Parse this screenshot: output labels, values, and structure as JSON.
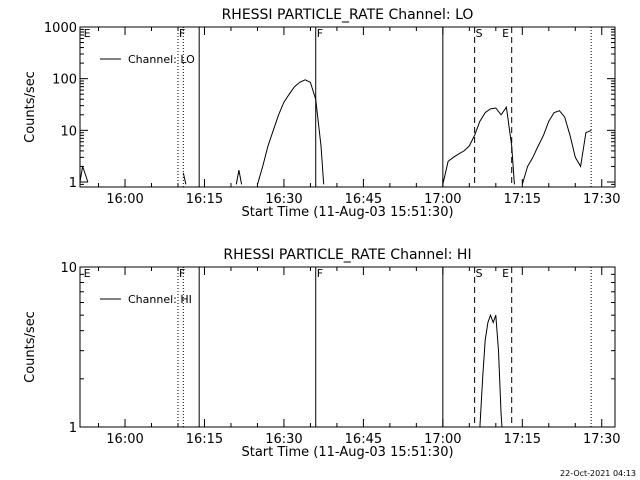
{
  "chart_data": [
    {
      "type": "line",
      "title": "RHESSI PARTICLE_RATE Channel: LO",
      "xlabel": "Start Time (11-Aug-03 15:51:30)",
      "ylabel": "Counts/sec",
      "yscale": "log",
      "xlim": [
        "15:51:30",
        "17:32:30"
      ],
      "ylim": [
        0.8,
        1000
      ],
      "x_ticks": [
        "16:00",
        "16:15",
        "16:30",
        "16:45",
        "17:00",
        "17:15",
        "17:30"
      ],
      "y_ticks": [
        "1",
        "10",
        "100",
        "1000"
      ],
      "legend": {
        "placement": "top-left",
        "entries": [
          "Channel: LO"
        ]
      },
      "markers": [
        {
          "time": "15:52",
          "label": "E"
        },
        {
          "time": "16:10",
          "label": "F"
        },
        {
          "time": "16:36",
          "label": "F"
        },
        {
          "time": "17:06",
          "label": "S"
        },
        {
          "time": "17:11",
          "label": "E"
        }
      ],
      "vertical_lines": [
        {
          "time": "16:10",
          "style": "dotted"
        },
        {
          "time": "16:11",
          "style": "dotted"
        },
        {
          "time": "16:14",
          "style": "solid"
        },
        {
          "time": "16:36",
          "style": "solid"
        },
        {
          "time": "17:00",
          "style": "solid"
        },
        {
          "time": "17:06",
          "style": "dashed"
        },
        {
          "time": "17:13",
          "style": "dashed"
        },
        {
          "time": "17:28",
          "style": "dotted"
        }
      ],
      "segments": [
        [
          [
            "15:51:30",
            1
          ],
          [
            "15:52",
            2
          ],
          [
            "15:53",
            1
          ]
        ],
        [
          [
            "16:11",
            1.5
          ],
          [
            "16:11:30",
            0.9
          ]
        ],
        [
          [
            "16:21",
            0.9
          ],
          [
            "16:21:30",
            1.7
          ],
          [
            "16:22",
            0.9
          ]
        ],
        [
          [
            "16:25",
            0.9
          ],
          [
            "16:26",
            2
          ],
          [
            "16:27",
            5
          ],
          [
            "16:28",
            10
          ],
          [
            "16:29",
            20
          ],
          [
            "16:30",
            35
          ],
          [
            "16:31",
            50
          ],
          [
            "16:32",
            70
          ],
          [
            "16:33",
            85
          ],
          [
            "16:34",
            95
          ],
          [
            "16:35",
            85
          ],
          [
            "16:36",
            40
          ],
          [
            "16:37",
            5
          ],
          [
            "16:37:30",
            0.9
          ]
        ],
        [
          [
            "17:00",
            0.9
          ],
          [
            "17:00:30",
            1.5
          ],
          [
            "17:01",
            2.5
          ],
          [
            "17:02",
            3
          ],
          [
            "17:03",
            3.5
          ],
          [
            "17:04",
            4
          ],
          [
            "17:05",
            5
          ],
          [
            "17:06",
            8
          ],
          [
            "17:07",
            15
          ],
          [
            "17:08",
            22
          ],
          [
            "17:09",
            26
          ],
          [
            "17:10",
            27
          ],
          [
            "17:11",
            20
          ],
          [
            "17:12",
            28
          ],
          [
            "17:13",
            5
          ],
          [
            "17:13:30",
            0.9
          ]
        ],
        [
          [
            "17:15",
            0.9
          ],
          [
            "17:16",
            2
          ],
          [
            "17:17",
            3
          ],
          [
            "17:18",
            5
          ],
          [
            "17:19",
            8
          ],
          [
            "17:20",
            15
          ],
          [
            "17:21",
            22
          ],
          [
            "17:22",
            24
          ],
          [
            "17:23",
            18
          ],
          [
            "17:24",
            8
          ],
          [
            "17:25",
            3
          ],
          [
            "17:26",
            2
          ],
          [
            "17:27",
            9
          ],
          [
            "17:28",
            10
          ]
        ]
      ]
    },
    {
      "type": "line",
      "title": "RHESSI PARTICLE_RATE Channel: HI",
      "xlabel": "Start Time (11-Aug-03 15:51:30)",
      "ylabel": "Counts/sec",
      "yscale": "log",
      "xlim": [
        "15:51:30",
        "17:32:30"
      ],
      "ylim": [
        1,
        10
      ],
      "x_ticks": [
        "16:00",
        "16:15",
        "16:30",
        "16:45",
        "17:00",
        "17:15",
        "17:30"
      ],
      "y_ticks": [
        "1",
        "10"
      ],
      "legend": {
        "placement": "top-left",
        "entries": [
          "Channel: HI"
        ]
      },
      "markers": [
        {
          "time": "15:52",
          "label": "E"
        },
        {
          "time": "16:10",
          "label": "F"
        },
        {
          "time": "16:36",
          "label": "F"
        },
        {
          "time": "17:06",
          "label": "S"
        },
        {
          "time": "17:11",
          "label": "E"
        }
      ],
      "vertical_lines": [
        {
          "time": "16:10",
          "style": "dotted"
        },
        {
          "time": "16:11",
          "style": "dotted"
        },
        {
          "time": "16:14",
          "style": "solid"
        },
        {
          "time": "16:36",
          "style": "solid"
        },
        {
          "time": "17:00",
          "style": "solid"
        },
        {
          "time": "17:06",
          "style": "dashed"
        },
        {
          "time": "17:13",
          "style": "dashed"
        },
        {
          "time": "17:28",
          "style": "dotted"
        }
      ],
      "segments": [
        [
          [
            "17:07",
            1
          ],
          [
            "17:07:30",
            2
          ],
          [
            "17:08",
            3.5
          ],
          [
            "17:08:30",
            4.5
          ],
          [
            "17:09",
            5
          ],
          [
            "17:09:30",
            4.5
          ],
          [
            "17:10",
            5
          ],
          [
            "17:10:30",
            3
          ],
          [
            "17:11",
            1.2
          ],
          [
            "17:11:10",
            1
          ]
        ]
      ]
    }
  ],
  "footer": {
    "timestamp": "22-Oct-2021 04:13"
  }
}
